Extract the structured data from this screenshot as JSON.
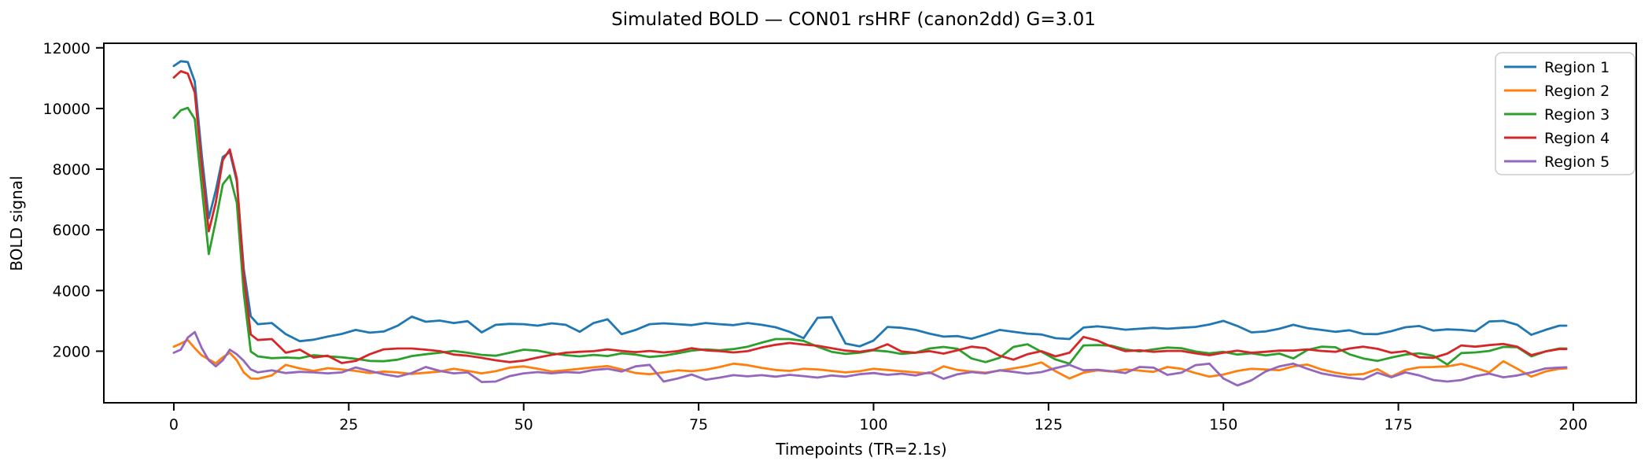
{
  "figure": {
    "background": "#ffffff",
    "axis_color": "#000000",
    "legend_border_color": "#cccccc"
  },
  "chart_data": {
    "type": "line",
    "title": "Simulated BOLD — CON01 rsHRF (canon2dd)  G=3.01",
    "xlabel": "Timepoints (TR=2.1s)",
    "ylabel": "BOLD signal",
    "legend_position": "upper right",
    "grid": false,
    "xlim": [
      -10,
      209
    ],
    "ylim": [
      300,
      12150
    ],
    "xticks": [
      0,
      25,
      50,
      75,
      100,
      125,
      150,
      175,
      200
    ],
    "yticks": [
      2000,
      4000,
      6000,
      8000,
      10000,
      12000
    ],
    "x": [
      0,
      1,
      2,
      3,
      4,
      5,
      6,
      7,
      8,
      9,
      10,
      11,
      12,
      14,
      16,
      18,
      20,
      22,
      24,
      26,
      28,
      30,
      32,
      34,
      36,
      38,
      40,
      42,
      44,
      46,
      48,
      50,
      52,
      54,
      56,
      58,
      60,
      62,
      64,
      66,
      68,
      70,
      72,
      74,
      76,
      78,
      80,
      82,
      84,
      86,
      88,
      90,
      92,
      94,
      96,
      98,
      100,
      102,
      104,
      106,
      108,
      110,
      112,
      114,
      116,
      118,
      120,
      122,
      124,
      126,
      128,
      130,
      132,
      134,
      136,
      138,
      140,
      142,
      144,
      146,
      148,
      150,
      152,
      154,
      156,
      158,
      160,
      162,
      164,
      166,
      168,
      170,
      172,
      174,
      176,
      178,
      180,
      182,
      184,
      186,
      188,
      190,
      192,
      194,
      196,
      198,
      199
    ],
    "series": [
      {
        "name": "Region 1",
        "color": "#1f77b4",
        "values": [
          11400,
          11560,
          11530,
          10890,
          8460,
          6380,
          7300,
          8400,
          8570,
          7600,
          4700,
          3150,
          2890,
          2930,
          2560,
          2330,
          2380,
          2480,
          2570,
          2700,
          2610,
          2650,
          2840,
          3140,
          2970,
          3010,
          2930,
          2990,
          2620,
          2870,
          2900,
          2890,
          2840,
          2920,
          2870,
          2640,
          2930,
          3050,
          2560,
          2700,
          2890,
          2920,
          2890,
          2860,
          2930,
          2890,
          2860,
          2930,
          2870,
          2790,
          2640,
          2430,
          3100,
          3120,
          2250,
          2160,
          2350,
          2800,
          2770,
          2700,
          2580,
          2480,
          2500,
          2410,
          2550,
          2700,
          2640,
          2580,
          2550,
          2430,
          2400,
          2780,
          2820,
          2770,
          2710,
          2740,
          2770,
          2740,
          2770,
          2800,
          2880,
          3000,
          2830,
          2620,
          2650,
          2740,
          2870,
          2760,
          2700,
          2640,
          2690,
          2570,
          2560,
          2660,
          2790,
          2830,
          2680,
          2720,
          2700,
          2660,
          2980,
          3000,
          2870,
          2540,
          2700,
          2840,
          2840
        ]
      },
      {
        "name": "Region 2",
        "color": "#ff7f0e",
        "values": [
          2150,
          2250,
          2370,
          2100,
          1860,
          1730,
          1600,
          1800,
          1950,
          1700,
          1300,
          1100,
          1090,
          1200,
          1550,
          1430,
          1350,
          1440,
          1400,
          1350,
          1280,
          1330,
          1300,
          1250,
          1290,
          1330,
          1420,
          1350,
          1270,
          1340,
          1460,
          1500,
          1420,
          1330,
          1370,
          1420,
          1470,
          1510,
          1400,
          1280,
          1240,
          1300,
          1370,
          1340,
          1390,
          1480,
          1590,
          1540,
          1450,
          1380,
          1350,
          1420,
          1400,
          1350,
          1300,
          1340,
          1420,
          1380,
          1340,
          1300,
          1270,
          1500,
          1380,
          1330,
          1290,
          1360,
          1430,
          1510,
          1630,
          1340,
          1100,
          1290,
          1370,
          1330,
          1400,
          1360,
          1320,
          1480,
          1420,
          1280,
          1160,
          1230,
          1350,
          1420,
          1400,
          1370,
          1500,
          1560,
          1400,
          1290,
          1220,
          1250,
          1410,
          1160,
          1380,
          1470,
          1480,
          1500,
          1580,
          1450,
          1300,
          1670,
          1420,
          1160,
          1330,
          1420,
          1430
        ]
      },
      {
        "name": "Region 3",
        "color": "#2ca02c",
        "values": [
          9690,
          9940,
          10020,
          9650,
          7400,
          5200,
          6300,
          7500,
          7790,
          6900,
          3900,
          1990,
          1830,
          1770,
          1790,
          1770,
          1870,
          1830,
          1800,
          1750,
          1680,
          1670,
          1720,
          1840,
          1900,
          1950,
          2010,
          1950,
          1880,
          1850,
          1950,
          2050,
          2020,
          1930,
          1870,
          1830,
          1880,
          1840,
          1930,
          1890,
          1810,
          1850,
          1930,
          2020,
          2060,
          2030,
          2070,
          2150,
          2280,
          2400,
          2400,
          2340,
          2150,
          1980,
          1910,
          1950,
          2030,
          1990,
          1910,
          1950,
          2090,
          2140,
          2080,
          1760,
          1640,
          1780,
          2140,
          2230,
          1980,
          1730,
          1590,
          2190,
          2200,
          2180,
          2060,
          1990,
          2060,
          2120,
          2100,
          1990,
          1930,
          1980,
          1890,
          1930,
          1860,
          1920,
          1760,
          2040,
          2150,
          2130,
          1900,
          1760,
          1680,
          1790,
          1890,
          1930,
          1850,
          1560,
          1940,
          1960,
          2010,
          2140,
          2130,
          1830,
          1990,
          2090,
          2090
        ]
      },
      {
        "name": "Region 4",
        "color": "#d62728",
        "values": [
          11020,
          11230,
          11150,
          10530,
          8100,
          5950,
          6900,
          8300,
          8650,
          7700,
          4500,
          2550,
          2370,
          2400,
          1950,
          2050,
          1790,
          1850,
          1610,
          1680,
          1900,
          2060,
          2090,
          2090,
          2050,
          2000,
          1890,
          1850,
          1780,
          1700,
          1640,
          1690,
          1790,
          1880,
          1950,
          1980,
          2000,
          2060,
          2010,
          1970,
          2010,
          1960,
          2000,
          2100,
          2030,
          2000,
          1960,
          2000,
          2120,
          2210,
          2270,
          2220,
          2180,
          2100,
          2020,
          1980,
          2050,
          2230,
          1990,
          1950,
          2000,
          1920,
          2030,
          2150,
          2100,
          1850,
          1720,
          1900,
          2000,
          1830,
          1950,
          2470,
          2350,
          2150,
          2000,
          2030,
          1980,
          2010,
          2010,
          1930,
          1870,
          1950,
          2020,
          1950,
          1980,
          2020,
          2020,
          2060,
          2010,
          1980,
          2090,
          2150,
          2080,
          1950,
          2000,
          1800,
          1780,
          1920,
          2190,
          2150,
          2200,
          2240,
          2150,
          1870,
          1990,
          2070,
          2070
        ]
      },
      {
        "name": "Region 5",
        "color": "#9467bd",
        "values": [
          1950,
          2050,
          2450,
          2630,
          2100,
          1700,
          1500,
          1700,
          2050,
          1900,
          1680,
          1400,
          1300,
          1370,
          1280,
          1320,
          1300,
          1270,
          1300,
          1465,
          1350,
          1240,
          1160,
          1280,
          1480,
          1350,
          1270,
          1300,
          985,
          1000,
          1180,
          1270,
          1310,
          1270,
          1310,
          1290,
          1380,
          1420,
          1330,
          1500,
          1550,
          1000,
          1100,
          1230,
          1060,
          1130,
          1210,
          1170,
          1210,
          1160,
          1220,
          1180,
          1130,
          1200,
          1160,
          1240,
          1280,
          1220,
          1260,
          1200,
          1300,
          1090,
          1240,
          1310,
          1270,
          1370,
          1320,
          1260,
          1310,
          1440,
          1550,
          1370,
          1390,
          1340,
          1280,
          1480,
          1460,
          1220,
          1290,
          1540,
          1590,
          1100,
          870,
          1040,
          1330,
          1500,
          1590,
          1420,
          1270,
          1190,
          1120,
          1075,
          1290,
          1140,
          1300,
          1200,
          1050,
          1000,
          1050,
          1180,
          1260,
          1140,
          1200,
          1300,
          1430,
          1460,
          1470
        ]
      }
    ]
  }
}
